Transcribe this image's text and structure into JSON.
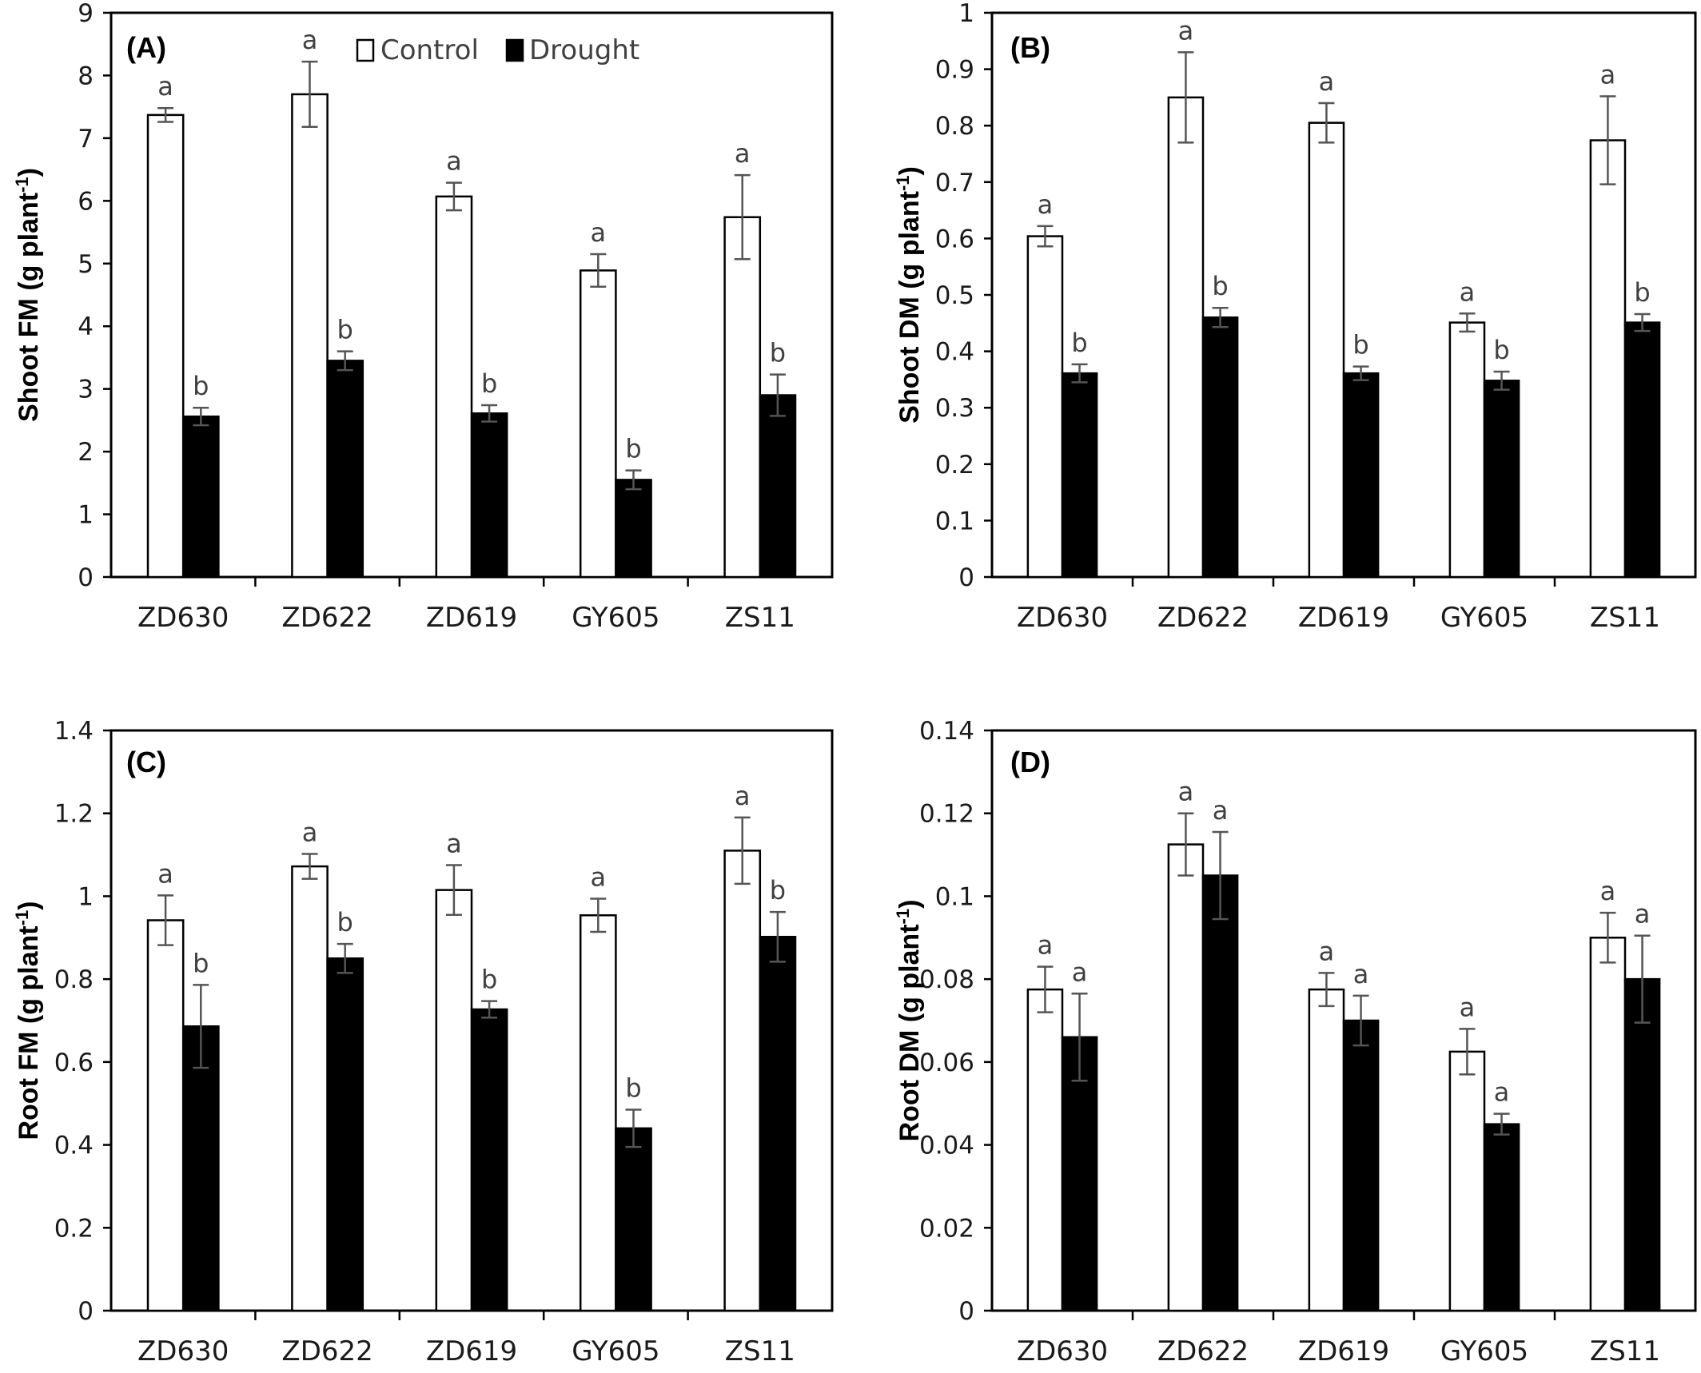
{
  "colors": {
    "control": "#ffffff",
    "drought": "#000000",
    "error_bar": "#555555",
    "axis": "#000000"
  },
  "legend": {
    "control_label": "Control",
    "drought_label": "Drought",
    "placement": "top"
  },
  "chart_data": [
    {
      "type": "bar",
      "panel_label": "(A)",
      "ylabel_main": "Shoot  FM (g plant",
      "ylabel_sup": "-1",
      "ylabel_end": ")",
      "categories": [
        "ZD630",
        "ZD622",
        "ZD619",
        "GY605",
        "ZS11"
      ],
      "ylim": [
        0,
        9
      ],
      "yticks": [
        "0",
        "1",
        "2",
        "3",
        "4",
        "5",
        "6",
        "7",
        "8",
        "9"
      ],
      "series": [
        {
          "name": "Control",
          "values": [
            7.37,
            7.7,
            6.07,
            4.89,
            5.74
          ],
          "errors": [
            0.11,
            0.52,
            0.22,
            0.26,
            0.67
          ],
          "letters": [
            "a",
            "a",
            "a",
            "a",
            "a"
          ]
        },
        {
          "name": "Drought",
          "values": [
            2.56,
            3.45,
            2.61,
            1.55,
            2.9
          ],
          "errors": [
            0.14,
            0.15,
            0.13,
            0.15,
            0.33
          ],
          "letters": [
            "b",
            "b",
            "b",
            "b",
            "b"
          ]
        }
      ]
    },
    {
      "type": "bar",
      "panel_label": "(B)",
      "ylabel_main": "Shoot DM (g plant",
      "ylabel_sup": "-1",
      "ylabel_end": ")",
      "categories": [
        "ZD630",
        "ZD622",
        "ZD619",
        "GY605",
        "ZS11"
      ],
      "ylim": [
        0,
        1
      ],
      "yticks": [
        "0",
        "0.1",
        "0.2",
        "0.3",
        "0.4",
        "0.5",
        "0.6",
        "0.7",
        "0.8",
        "0.9",
        "1"
      ],
      "series": [
        {
          "name": "Control",
          "values": [
            0.604,
            0.85,
            0.805,
            0.451,
            0.774
          ],
          "errors": [
            0.018,
            0.08,
            0.035,
            0.016,
            0.078
          ],
          "letters": [
            "a",
            "a",
            "a",
            "a",
            "a"
          ]
        },
        {
          "name": "Drought",
          "values": [
            0.361,
            0.46,
            0.361,
            0.348,
            0.451
          ],
          "errors": [
            0.016,
            0.017,
            0.012,
            0.016,
            0.015
          ],
          "letters": [
            "b",
            "b",
            "b",
            "b",
            "b"
          ]
        }
      ]
    },
    {
      "type": "bar",
      "panel_label": "(C)",
      "ylabel_main": "Root FM (g plant",
      "ylabel_sup": "-1",
      "ylabel_end": ")",
      "categories": [
        "ZD630",
        "ZD622",
        "ZD619",
        "GY605",
        "ZS11"
      ],
      "ylim": [
        0,
        1.4
      ],
      "yticks": [
        "0",
        "0.2",
        "0.4",
        "0.6",
        "0.8",
        "1",
        "1.2",
        "1.4"
      ],
      "series": [
        {
          "name": "Control",
          "values": [
            0.942,
            1.072,
            1.015,
            0.954,
            1.11
          ],
          "errors": [
            0.06,
            0.03,
            0.06,
            0.04,
            0.08
          ],
          "letters": [
            "a",
            "a",
            "a",
            "a",
            "a"
          ]
        },
        {
          "name": "Drought",
          "values": [
            0.686,
            0.85,
            0.727,
            0.44,
            0.902
          ],
          "errors": [
            0.1,
            0.035,
            0.02,
            0.045,
            0.06
          ],
          "letters": [
            "b",
            "b",
            "b",
            "b",
            "b"
          ]
        }
      ]
    },
    {
      "type": "bar",
      "panel_label": "(D)",
      "ylabel_main": "Root DM (g plant",
      "ylabel_sup": "-1",
      "ylabel_end": ")",
      "categories": [
        "ZD630",
        "ZD622",
        "ZD619",
        "GY605",
        "ZS11"
      ],
      "ylim": [
        0,
        0.14
      ],
      "yticks": [
        "0",
        "0.02",
        "0.04",
        "0.06",
        "0.08",
        "0.1",
        "0.12",
        "0.14"
      ],
      "series": [
        {
          "name": "Control",
          "values": [
            0.0775,
            0.1125,
            0.0775,
            0.0625,
            0.09
          ],
          "errors": [
            0.0055,
            0.0075,
            0.004,
            0.0055,
            0.006
          ],
          "letters": [
            "a",
            "a",
            "a",
            "a",
            "a"
          ]
        },
        {
          "name": "Drought",
          "values": [
            0.066,
            0.105,
            0.07,
            0.045,
            0.08
          ],
          "errors": [
            0.0105,
            0.0105,
            0.006,
            0.0025,
            0.0105
          ],
          "letters": [
            "a",
            "a",
            "a",
            "a",
            "a"
          ]
        }
      ]
    }
  ]
}
